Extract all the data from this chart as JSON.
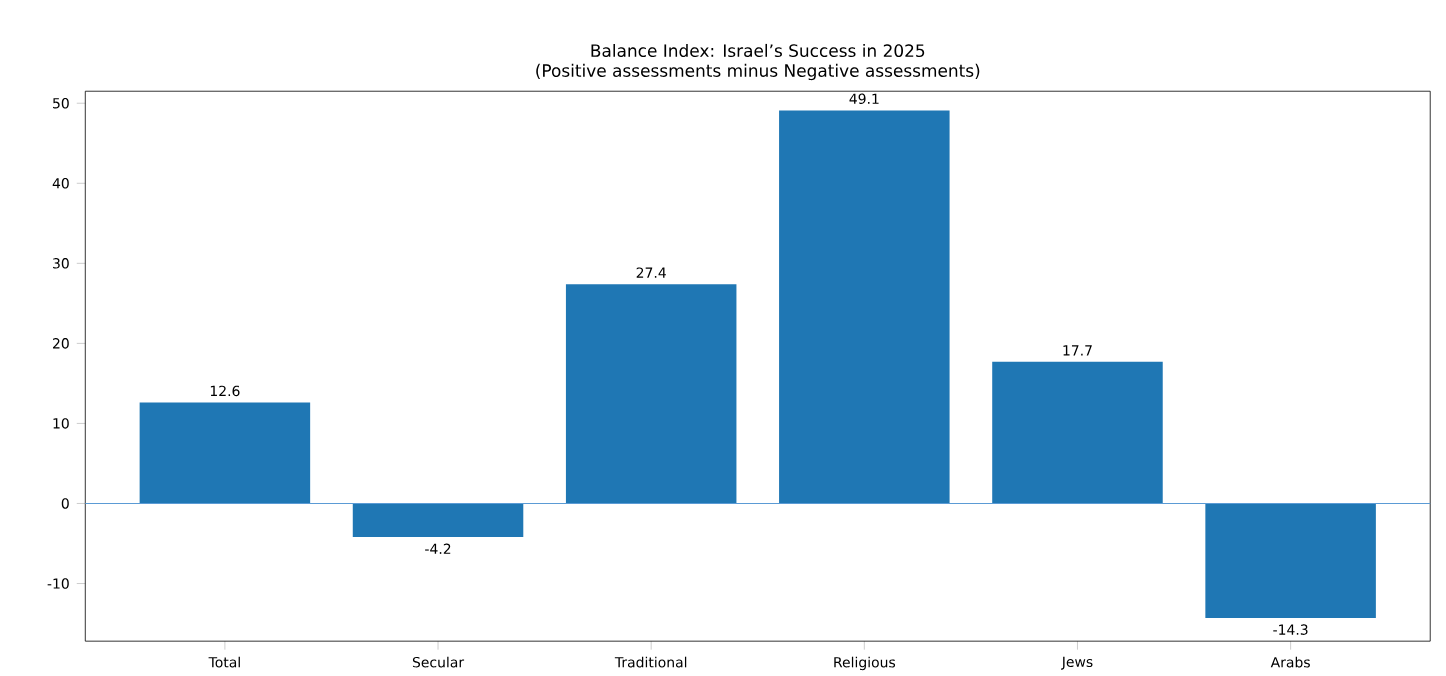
{
  "chart_data": {
    "type": "bar",
    "title": "Balance Index: Israel’s Success in 2025",
    "subtitle": "(Positive assessments minus Negative assessments)",
    "categories": [
      "Total",
      "Secular",
      "Traditional",
      "Religious",
      "Jews",
      "Arabs"
    ],
    "values": [
      12.6,
      -4.2,
      27.4,
      49.1,
      17.7,
      -14.3
    ],
    "color": "#1f77b4",
    "ylim": [
      -17.2,
      51.5
    ],
    "yticks": [
      -10,
      0,
      10,
      20,
      30,
      40,
      50
    ],
    "ref_lines": [
      {
        "axis": "y",
        "value": 0,
        "color": "#5b9bd5"
      }
    ],
    "data_labels": true,
    "grid": false
  }
}
